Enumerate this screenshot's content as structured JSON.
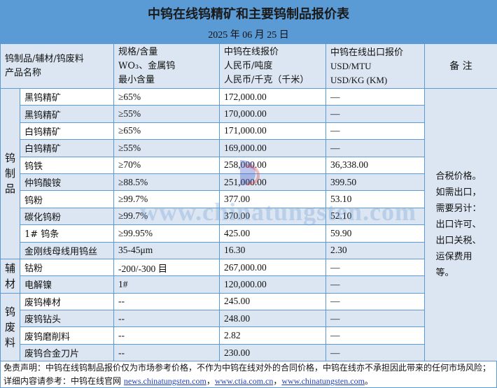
{
  "title": "中钨在线钨精矿和主要钨制品报价表",
  "date": "2025 年 06 月 25 日",
  "headers": {
    "col1": [
      "钨制品/辅材/钨废料",
      "产品名称"
    ],
    "col2": [
      "规格/含量",
      "WO₃、金属钨",
      "最小含量"
    ],
    "col3": [
      "中钨在线报价",
      "人民币/吨度",
      "人民币/千克（千米）"
    ],
    "col4": [
      "中钨在线出口报价",
      "USD/MTU",
      "USD/KG (KM)"
    ],
    "col5": "备 注"
  },
  "categories": [
    "钨制品",
    "辅材",
    "钨废料"
  ],
  "groups": [
    {
      "rows": [
        {
          "name": "黑钨精矿",
          "spec": "≥65%",
          "rmb": "172,000.00",
          "usd": "—"
        },
        {
          "name": "黑钨精矿",
          "spec": "≥55%",
          "rmb": "170,000.00",
          "usd": "—"
        },
        {
          "name": "白钨精矿",
          "spec": "≥65%",
          "rmb": "171,000.00",
          "usd": "—"
        },
        {
          "name": "白钨精矿",
          "spec": "≥55%",
          "rmb": "169,000.00",
          "usd": "—"
        },
        {
          "name": "钨铁",
          "spec": "≥70%",
          "rmb": "258,000.00",
          "usd": "36,338.00"
        },
        {
          "name": "仲钨酸铵",
          "spec": "≥88.5%",
          "rmb": "251,000.00",
          "usd": "399.50"
        },
        {
          "name": "钨粉",
          "spec": "≥99.7%",
          "rmb": "377.00",
          "usd": "53.10"
        },
        {
          "name": "碳化钨粉",
          "spec": "≥99.7%",
          "rmb": "370.00",
          "usd": "52.10"
        },
        {
          "name": "1# 钨条",
          "spec": "≥99.95%",
          "rmb": "425.00",
          "usd": "59.90"
        },
        {
          "name": "金刚线母线用钨丝",
          "spec": "35-45μm",
          "rmb": "16.30",
          "usd": "2.30"
        }
      ]
    },
    {
      "rows": [
        {
          "name": "钴粉",
          "spec": "-200/-300 目",
          "rmb": "267,000.00",
          "usd": "—"
        },
        {
          "name": "电解镍",
          "spec": "1#",
          "rmb": "120,000.00",
          "usd": "—"
        }
      ]
    },
    {
      "rows": [
        {
          "name": "废钨棒材",
          "spec": "--",
          "rmb": "245.00",
          "usd": "—"
        },
        {
          "name": "废钨钻头",
          "spec": "--",
          "rmb": "248.00",
          "usd": "—"
        },
        {
          "name": "废钨磨削料",
          "spec": "--",
          "rmb": "2.82",
          "usd": "—"
        },
        {
          "name": "废钨合金刀片",
          "spec": "--",
          "rmb": "230.00",
          "usd": "—"
        }
      ]
    }
  ],
  "remarks": "合税价格。如需出口，需要另计：出口许可、出口关税、运保费用等。",
  "footer": {
    "disclaimer": "免责声明：中钨在线钨制品报价仅为市场参考价格，不作为中钨在线对外的合同价格，中钨在线亦不承担因此带来的任何市场风险；",
    "ref_label": "详细内容请参考：中钨在线官网 ",
    "links": [
      "news.chinatungsten.com",
      "www.ctia.com.cn",
      "www.chinatungsten.com"
    ],
    "sep": "，",
    "end": "。"
  },
  "watermark": "www.chinatungsten.com",
  "colors": {
    "header_bar": "#5b9bd5",
    "row_alt": "#dce6f2",
    "border": "#5b9bd5",
    "link": "#1f3fbf"
  }
}
